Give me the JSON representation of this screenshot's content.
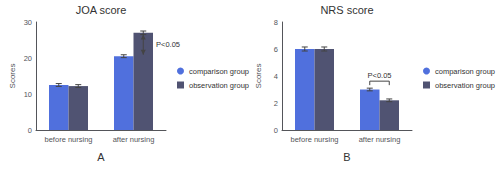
{
  "chart_data": [
    {
      "type": "bar",
      "title": "JOA score",
      "subtitle": "A",
      "ylabel": "Scores",
      "categories": [
        "before nursing",
        "after nursing"
      ],
      "series": [
        {
          "name": "comparison group",
          "marker": "circle",
          "values": [
            12.5,
            20.5
          ],
          "errors": [
            0.4,
            0.4
          ]
        },
        {
          "name": "observation group",
          "marker": "square",
          "values": [
            12.2,
            27.0
          ],
          "errors": [
            0.4,
            0.5
          ]
        }
      ],
      "ylim": [
        0,
        30
      ],
      "yticks": [
        0,
        10,
        20,
        30
      ],
      "grid": false,
      "legend": "right",
      "annotations": [
        {
          "text": "P<0.05",
          "category": "after nursing"
        }
      ]
    },
    {
      "type": "bar",
      "title": "NRS score",
      "subtitle": "B",
      "ylabel": "Scores",
      "categories": [
        "before nursing",
        "after nursing"
      ],
      "series": [
        {
          "name": "comparison group",
          "marker": "circle",
          "values": [
            6.0,
            3.0
          ],
          "errors": [
            0.15,
            0.1
          ]
        },
        {
          "name": "observation group",
          "marker": "square",
          "values": [
            6.0,
            2.2
          ],
          "errors": [
            0.15,
            0.1
          ]
        }
      ],
      "ylim": [
        0,
        8
      ],
      "yticks": [
        0,
        2,
        4,
        6,
        8
      ],
      "grid": false,
      "legend": "right",
      "annotations": [
        {
          "text": "P<0.05",
          "category": "after nursing"
        }
      ]
    }
  ]
}
